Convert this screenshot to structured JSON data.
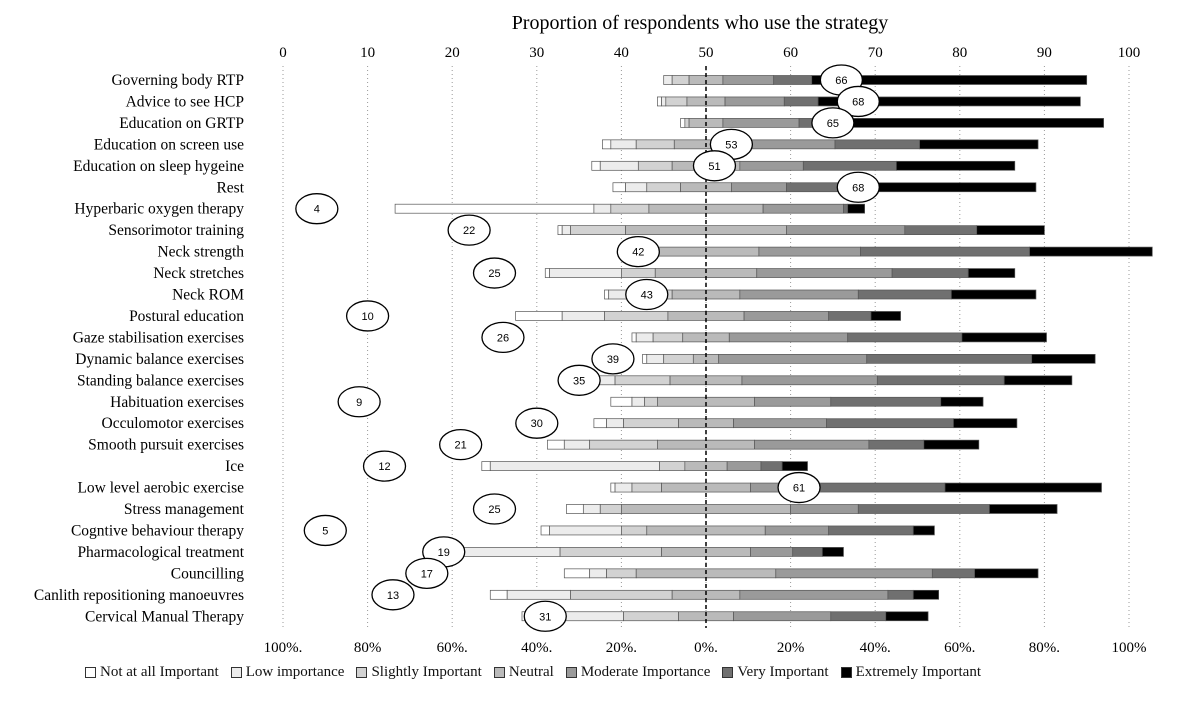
{
  "chart_data": {
    "type": "bar",
    "subtype": "diverging-stacked-bar-with-proportion-bubbles",
    "top_axis": {
      "title": "Proportion of respondents who use the strategy",
      "ticks": [
        "0",
        "10",
        "20",
        "30",
        "40",
        "50",
        "60",
        "70",
        "80",
        "90",
        "100"
      ],
      "range": [
        0,
        100
      ]
    },
    "bottom_axis": {
      "ticks": [
        "100%.",
        "80%",
        "60%.",
        "40%.",
        "20%.",
        "0%.",
        "20%",
        "40%.",
        "60%.",
        "80%.",
        "100%"
      ],
      "range": [
        -100,
        100
      ]
    },
    "grid": "vertical dotted",
    "legend_position": "bottom",
    "categories_legend": [
      {
        "name": "Not at all Important",
        "color": "#ffffff"
      },
      {
        "name": "Low importance",
        "color": "#ececec"
      },
      {
        "name": "Slightly Important",
        "color": "#d2d2d2"
      },
      {
        "name": "Neutral",
        "color": "#bababa"
      },
      {
        "name": "Moderate Importance",
        "color": "#9a9a9a"
      },
      {
        "name": "Very Important",
        "color": "#707070"
      },
      {
        "name": "Extremely Important",
        "color": "#000000"
      }
    ],
    "strategies": [
      {
        "label": "Governing body RTP",
        "usage": 66,
        "values": [
          0,
          2,
          4,
          8,
          12,
          9,
          65
        ]
      },
      {
        "label": "Advice to see HCP",
        "usage": 68,
        "values": [
          1,
          1,
          5,
          9,
          14,
          8,
          62
        ]
      },
      {
        "label": "Education on GRTP",
        "usage": 65,
        "values": [
          1,
          0,
          1,
          8,
          18,
          10,
          62
        ]
      },
      {
        "label": "Education on screen use",
        "usage": 53,
        "values": [
          2,
          6,
          9,
          15,
          23,
          20,
          28
        ]
      },
      {
        "label": "Education on sleep hygeine",
        "usage": 51,
        "values": [
          2,
          9,
          8,
          16,
          15,
          22,
          28
        ]
      },
      {
        "label": "Rest",
        "usage": 68,
        "values": [
          3,
          5,
          8,
          12,
          13,
          13,
          46
        ]
      },
      {
        "label": "Hyperbaric oxygen therapy",
        "usage": 4,
        "values": [
          47,
          4,
          9,
          27,
          19,
          1,
          4
        ]
      },
      {
        "label": "Sensorimotor training",
        "usage": 22,
        "values": [
          1,
          2,
          13,
          38,
          28,
          17,
          16
        ]
      },
      {
        "label": "Neck strength",
        "usage": 42,
        "values": [
          1,
          2,
          5,
          25,
          24,
          40,
          29
        ]
      },
      {
        "label": "Neck stretches",
        "usage": 25,
        "values": [
          1,
          17,
          8,
          24,
          32,
          18,
          11
        ]
      },
      {
        "label": "Neck ROM",
        "usage": 43,
        "values": [
          1,
          9,
          6,
          16,
          28,
          22,
          20
        ]
      },
      {
        "label": "Postural education",
        "usage": 10,
        "values": [
          11,
          10,
          15,
          18,
          20,
          10,
          7
        ]
      },
      {
        "label": "Gaze stabilisation exercises",
        "usage": 26,
        "values": [
          1,
          4,
          7,
          11,
          28,
          27,
          20
        ]
      },
      {
        "label": "Dynamic balance exercises",
        "usage": 39,
        "values": [
          1,
          4,
          7,
          6,
          35,
          39,
          15
        ]
      },
      {
        "label": "Standing balance exercises",
        "usage": 35,
        "values": [
          1,
          5,
          13,
          17,
          32,
          30,
          16
        ]
      },
      {
        "label": "Habituation exercises",
        "usage": 9,
        "values": [
          5,
          3,
          3,
          23,
          18,
          26,
          10
        ]
      },
      {
        "label": "Occulomotor exercises",
        "usage": 30,
        "values": [
          3,
          4,
          13,
          13,
          22,
          30,
          15
        ]
      },
      {
        "label": "Smooth pursuit exercises",
        "usage": 21,
        "values": [
          4,
          6,
          16,
          23,
          27,
          13,
          13
        ]
      },
      {
        "label": "Ice",
        "usage": 12,
        "values": [
          2,
          40,
          6,
          10,
          8,
          5,
          6
        ]
      },
      {
        "label": "Low level aerobic exercise",
        "usage": 61,
        "values": [
          1,
          4,
          7,
          21,
          11,
          35,
          37
        ]
      },
      {
        "label": "Stress management",
        "usage": 25,
        "values": [
          4,
          4,
          5,
          40,
          16,
          31,
          16
        ]
      },
      {
        "label": "Cogntive behaviour therapy",
        "usage": 5,
        "values": [
          2,
          17,
          6,
          28,
          15,
          20,
          5
        ]
      },
      {
        "label": "Pharmacological treatment",
        "usage": 19,
        "values": [
          3,
          28,
          24,
          21,
          10,
          7,
          5
        ]
      },
      {
        "label": "Councilling",
        "usage": 17,
        "values": [
          6,
          4,
          7,
          33,
          37,
          10,
          15
        ]
      },
      {
        "label": "Canlith repositioning manoeuvres",
        "usage": 13,
        "values": [
          4,
          15,
          24,
          16,
          35,
          6,
          6
        ]
      },
      {
        "label": "Cervical Manual Therapy",
        "usage": 31,
        "values": [
          1,
          23,
          13,
          13,
          23,
          13,
          10
        ]
      }
    ]
  }
}
